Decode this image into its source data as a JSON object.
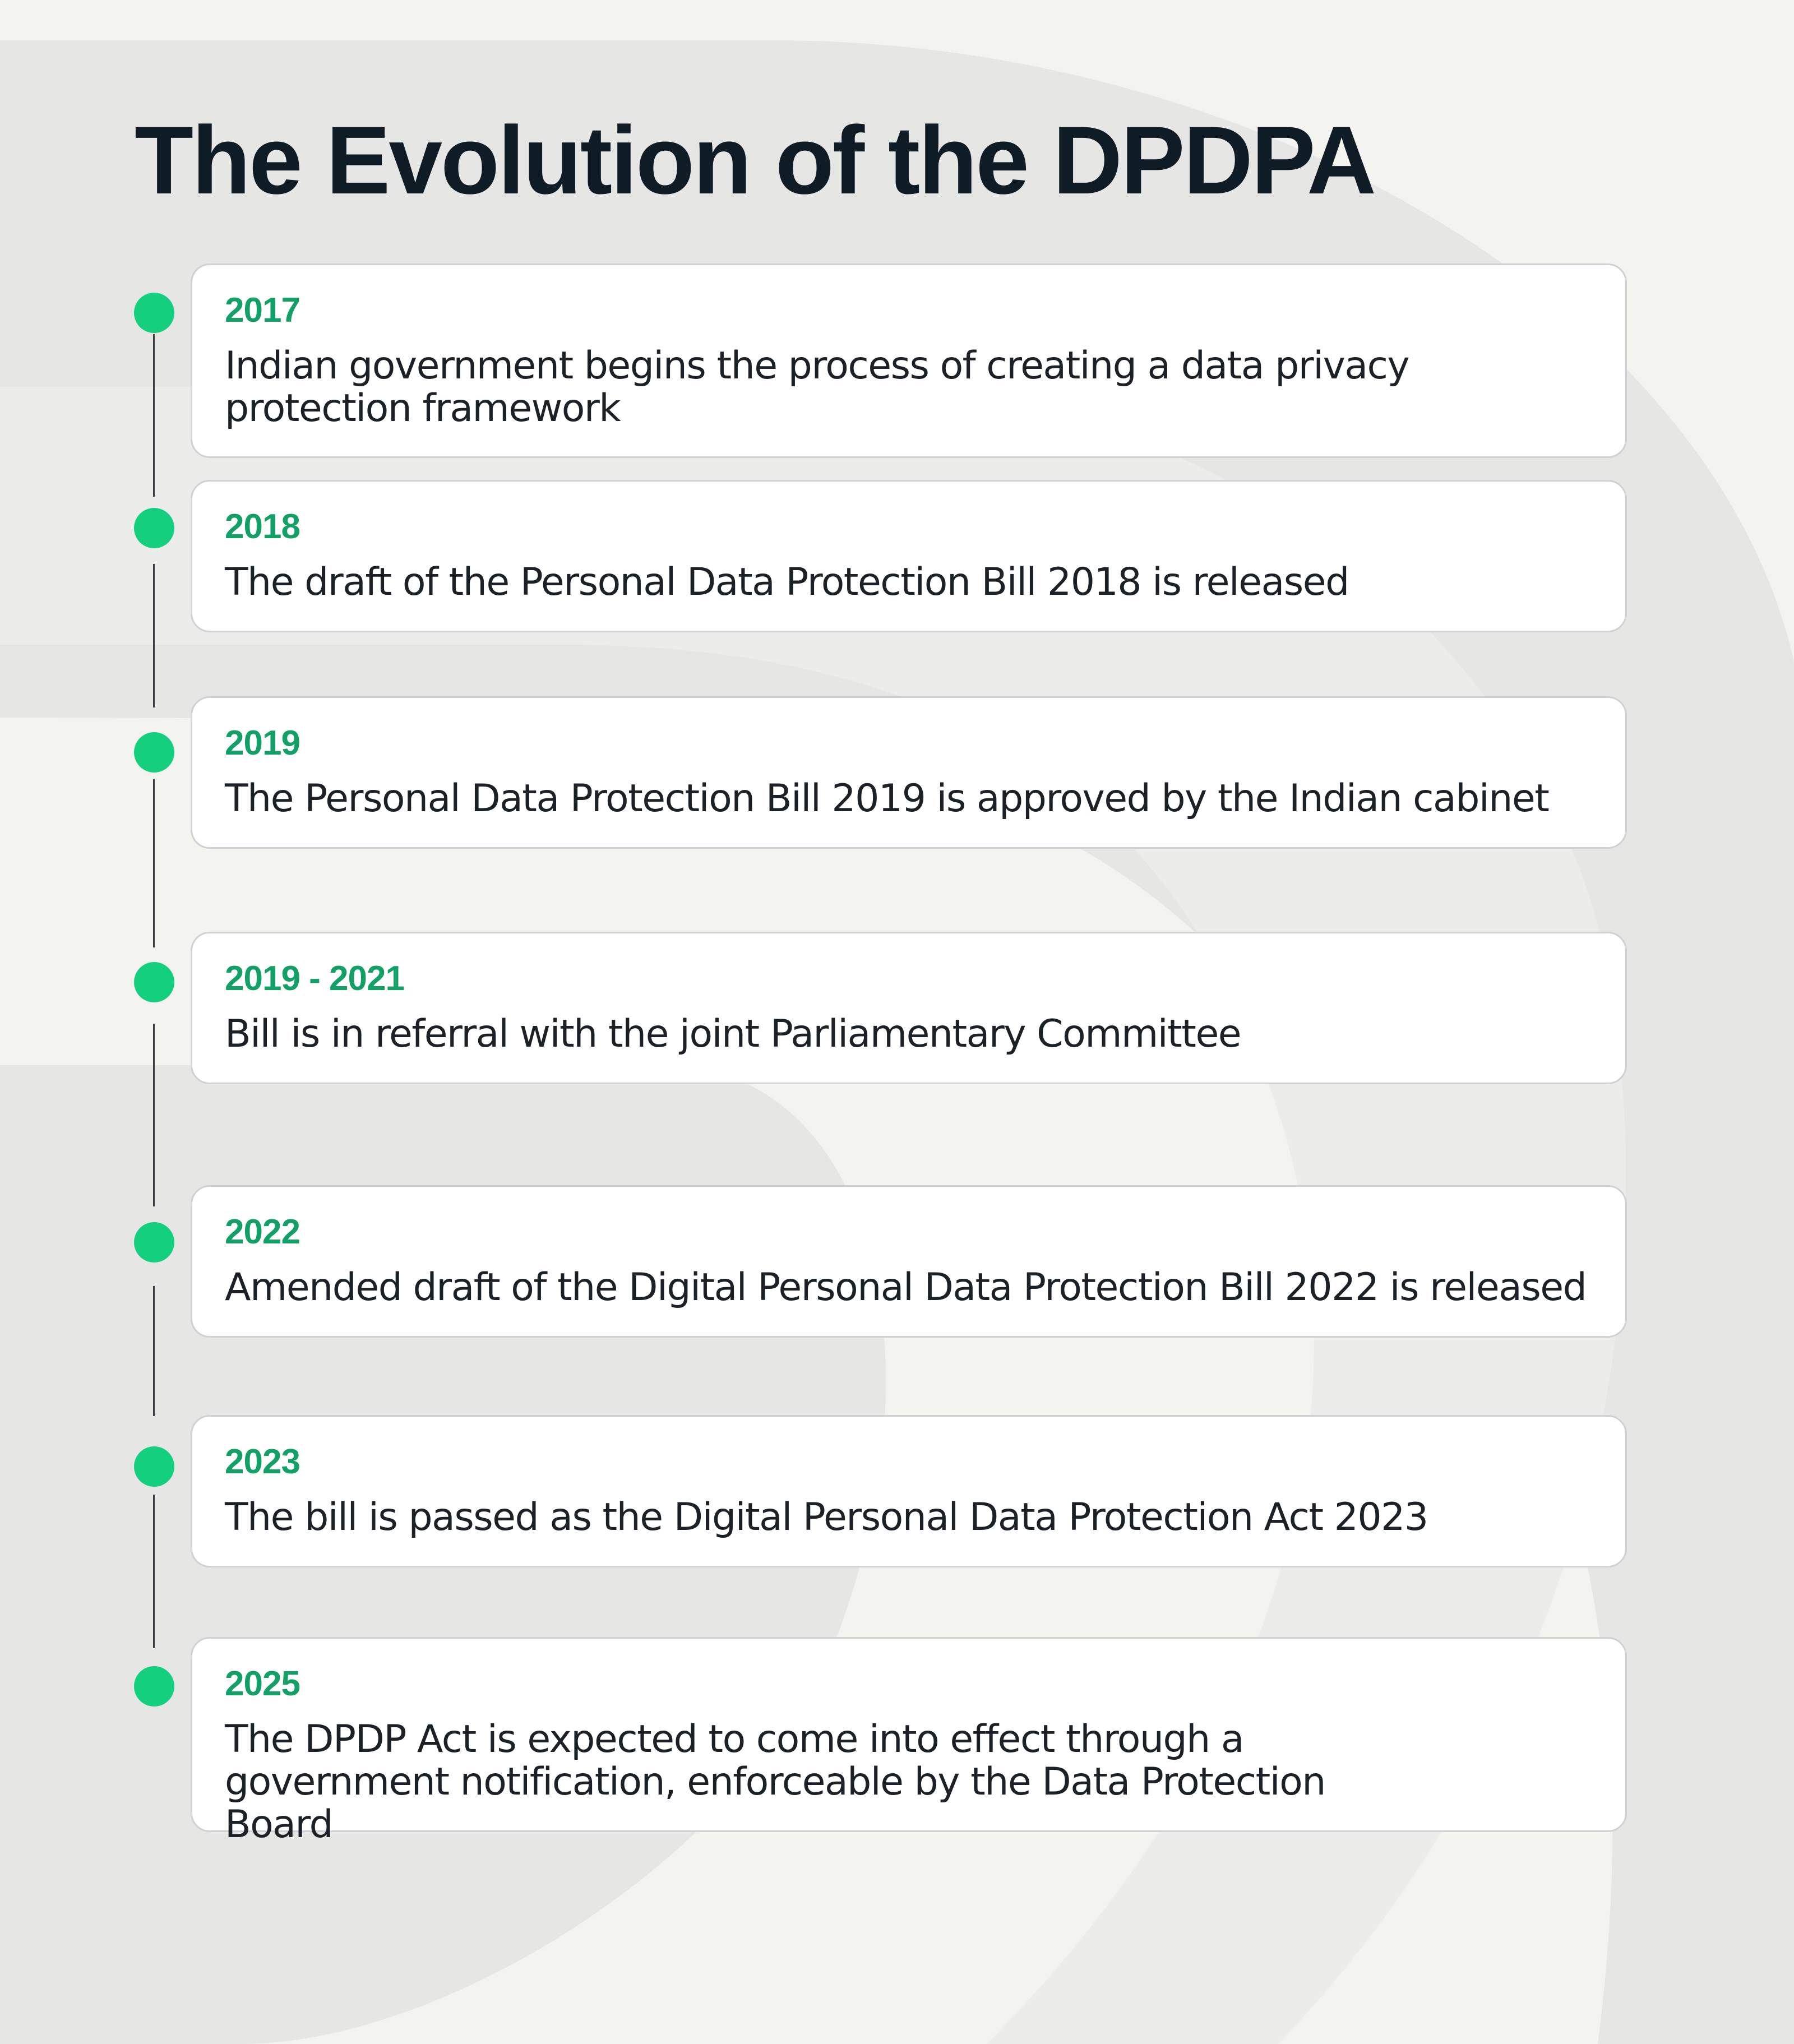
{
  "title": "The Evolution of the DPDPA",
  "colors": {
    "background": "#f3f3f0",
    "background_shape": "#e6e6e4",
    "title": "#0f1c26",
    "accent_dot": "#14cf7e",
    "year_text": "#12a066",
    "card_background": "#ffffff",
    "card_border": "#cfd1d3",
    "connector": "#3a3f44",
    "body_text": "#1b2127"
  },
  "timeline": [
    {
      "year": "2017",
      "text": "Indian government begins the process of creating a data privacy protection framework"
    },
    {
      "year": "2018",
      "text": "The draft of the Personal Data Protection Bill 2018 is released"
    },
    {
      "year": "2019",
      "text": "The Personal Data Protection Bill 2019 is approved by the Indian cabinet"
    },
    {
      "year": "2019 - 2021",
      "text": "Bill is in referral with the joint Parliamentary Committee"
    },
    {
      "year": "2022",
      "text": "Amended draft of the Digital Personal Data Protection Bill 2022 is released"
    },
    {
      "year": "2023",
      "text": "The bill is passed as the Digital Personal Data Protection Act 2023"
    },
    {
      "year": "2025",
      "text": "The DPDP Act is expected to come into effect through a government notification, enforceable by the Data Protection Board"
    }
  ]
}
